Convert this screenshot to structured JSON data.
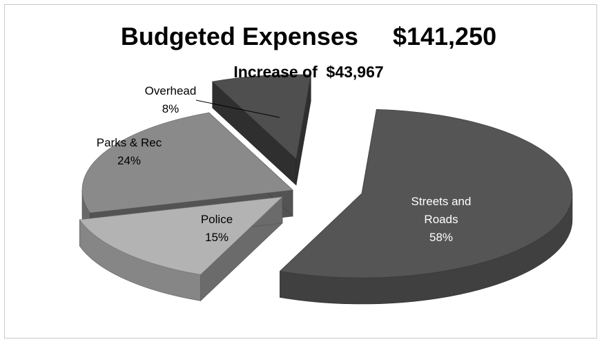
{
  "chart_data": {
    "type": "pie",
    "title": "Budgeted Expenses     $141,250",
    "subtitle": "Increase of  $43,967",
    "slices": [
      {
        "name": "Streets and Roads",
        "label_lines": [
          "Streets and",
          "Roads"
        ],
        "percent_label": "58%",
        "value": 58,
        "color": "#555555"
      },
      {
        "name": "Police",
        "label_lines": [
          "Police"
        ],
        "percent_label": "15%",
        "value": 15,
        "color": "#b3b3b3"
      },
      {
        "name": "Parks & Rec",
        "label_lines": [
          "Parks & Rec"
        ],
        "percent_label": "24%",
        "value": 24,
        "color": "#8a8a8a"
      },
      {
        "name": "Overhead",
        "label_lines": [
          "Overhead"
        ],
        "percent_label": "8%",
        "value": 8,
        "color": "#4f4f4f"
      }
    ],
    "legend": "none",
    "style": "3d exploded pie"
  }
}
